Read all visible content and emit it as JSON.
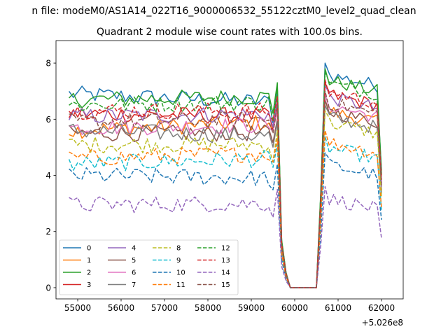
{
  "chart_data": {
    "type": "line",
    "suptitle": "n file: modeM0/AS1A14_022T16_9000006532_55122cztM0_level2_quad_clean",
    "title": "Quadrant 2 module wise count rates with 100.0s bins.",
    "xlabel": "",
    "ylabel": "",
    "x_offset_label": "+5.026e8",
    "x_start": 54800,
    "x_step": 100,
    "xlim": [
      54500,
      62500
    ],
    "ylim": [
      -0.4,
      8.8
    ],
    "x_ticks": [
      55000,
      56000,
      57000,
      58000,
      59000,
      60000,
      61000,
      62000
    ],
    "x_tick_labels": [
      "55000",
      "56000",
      "57000",
      "58000",
      "59000",
      "60000",
      "61000",
      "62000"
    ],
    "y_ticks": [
      0,
      2,
      4,
      6,
      8
    ],
    "y_tick_labels": [
      "0",
      "2",
      "4",
      "6",
      "8"
    ],
    "grid": false,
    "legend_position": "lower-left",
    "legend_columns": 4,
    "series": [
      {
        "name": "0",
        "color": "#1f77b4",
        "dash": "solid",
        "base": 6.9,
        "end": 6.6,
        "post": 7.6
      },
      {
        "name": "1",
        "color": "#ff7f0e",
        "dash": "solid",
        "base": 5.6,
        "end": 5.9,
        "post": 6.3
      },
      {
        "name": "2",
        "color": "#2ca02c",
        "dash": "solid",
        "base": 6.7,
        "end": 6.8,
        "post": 7.4
      },
      {
        "name": "3",
        "color": "#d62728",
        "dash": "solid",
        "base": 6.2,
        "end": 6.1,
        "post": 6.9
      },
      {
        "name": "4",
        "color": "#9467bd",
        "dash": "solid",
        "base": 6.1,
        "end": 6.2,
        "post": 6.8
      },
      {
        "name": "5",
        "color": "#8c564b",
        "dash": "solid",
        "base": 5.5,
        "end": 5.5,
        "post": 6.3
      },
      {
        "name": "6",
        "color": "#e377c2",
        "dash": "solid",
        "base": 5.7,
        "end": 5.8,
        "post": 6.5
      },
      {
        "name": "7",
        "color": "#7f7f7f",
        "dash": "solid",
        "base": 5.6,
        "end": 5.4,
        "post": 6.1
      },
      {
        "name": "8",
        "color": "#bcbd22",
        "dash": "dashed",
        "base": 5.1,
        "end": 5.1,
        "post": 5.9
      },
      {
        "name": "9",
        "color": "#17becf",
        "dash": "dashed",
        "base": 4.4,
        "end": 4.6,
        "post": 5.0
      },
      {
        "name": "10",
        "color": "#1f77b4",
        "dash": "dashed",
        "base": 4.0,
        "end": 3.9,
        "post": 4.4
      },
      {
        "name": "11",
        "color": "#ff7f0e",
        "dash": "dashed",
        "base": 4.6,
        "end": 4.8,
        "post": 5.2
      },
      {
        "name": "12",
        "color": "#2ca02c",
        "dash": "dashed",
        "base": 6.5,
        "end": 6.6,
        "post": 7.3
      },
      {
        "name": "13",
        "color": "#d62728",
        "dash": "dashed",
        "base": 6.3,
        "end": 6.3,
        "post": 7.0
      },
      {
        "name": "14",
        "color": "#9467bd",
        "dash": "dashed",
        "base": 2.95,
        "end": 3.0,
        "post": 3.2
      },
      {
        "name": "15",
        "color": "#8c564b",
        "dash": "dashed",
        "base": 5.9,
        "end": 6.0,
        "post": 6.6
      }
    ]
  }
}
